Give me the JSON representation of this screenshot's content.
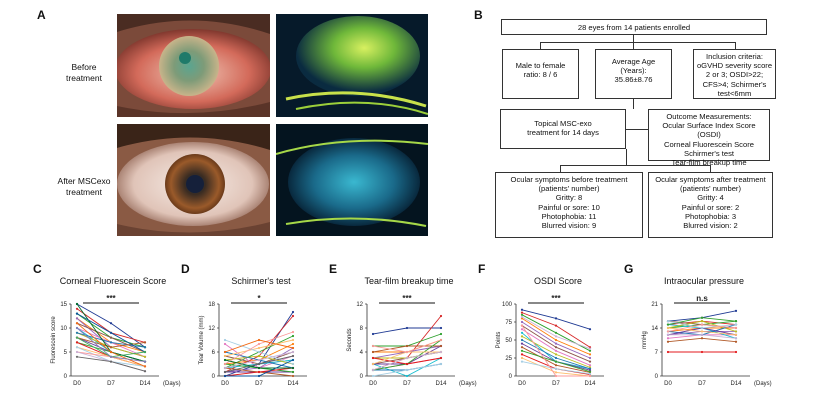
{
  "panelA": {
    "letter": "A",
    "row1_label": [
      "Before",
      "treatment"
    ],
    "row2_label": [
      "After MSCexo",
      "treatment"
    ]
  },
  "panelB": {
    "letter": "B",
    "enrolled": "28 eyes from 14 patients enrolled",
    "sex_ratio": [
      "Male to female",
      "ratio: 8 / 6"
    ],
    "age": [
      "Average Age",
      "(Years):",
      "35.86±8.76"
    ],
    "inclusion": [
      "Inclusion criteria:",
      "oGVHD  severity score",
      "2 or 3; OSDI>22;",
      "CFS>4; Schirmer's",
      "test<6mm"
    ],
    "treatment": [
      "Topical MSC-exo",
      "treatment for 14 days"
    ],
    "outcomes": [
      "Outcome Measurements:",
      "Ocular Surface Index Score (OSDI)",
      "Corneal Fluorescein Score",
      "Schirmer's test",
      "Tear-film breakup time"
    ],
    "before": {
      "title": [
        "Ocular symptoms before treatment",
        "(patients' number)"
      ],
      "items": [
        "Gritty: 8",
        "Painful or sore: 10",
        "Photophobia: 11",
        "Blurred vision: 9"
      ]
    },
    "after": {
      "title": [
        "Ocular symptoms after treatment",
        "(patients' number)"
      ],
      "items": [
        "Gritty: 4",
        "Painful or sore: 2",
        "Photophobia: 3",
        "Blurred vision: 2"
      ]
    }
  },
  "chart_data": [
    {
      "type": "line",
      "letter": "C",
      "title": "Corneal Fluorescein Score",
      "xlabel": "(Days)",
      "ylabel": "Fluorescein score",
      "categories": [
        "D0",
        "D7",
        "D14"
      ],
      "ylim": [
        0,
        15
      ],
      "yticks": [
        "0",
        "5",
        "10",
        "15"
      ],
      "yticks_values": [
        0,
        5,
        10,
        15
      ],
      "significance": "***",
      "series": [
        {
          "values": [
            15,
            11,
            6
          ]
        },
        {
          "values": [
            14,
            9,
            7
          ]
        },
        {
          "values": [
            13,
            8,
            6
          ]
        },
        {
          "values": [
            12,
            7,
            5
          ]
        },
        {
          "values": [
            12,
            6,
            4
          ]
        },
        {
          "values": [
            11,
            8,
            5
          ]
        },
        {
          "values": [
            10,
            7,
            4
          ]
        },
        {
          "values": [
            10,
            5,
            3
          ]
        },
        {
          "values": [
            9,
            6,
            4
          ]
        },
        {
          "values": [
            9,
            7,
            6
          ]
        },
        {
          "values": [
            8,
            5,
            3
          ]
        },
        {
          "values": [
            8,
            6,
            7
          ]
        },
        {
          "values": [
            7,
            5,
            3
          ]
        },
        {
          "values": [
            7,
            4,
            2
          ]
        },
        {
          "values": [
            6,
            4,
            2
          ]
        },
        {
          "values": [
            6,
            3,
            2
          ]
        },
        {
          "values": [
            5,
            4,
            3
          ]
        },
        {
          "values": [
            5,
            3,
            1
          ]
        },
        {
          "values": [
            4,
            3,
            1
          ]
        },
        {
          "values": [
            15,
            5,
            3
          ]
        },
        {
          "values": [
            13,
            9,
            5
          ]
        },
        {
          "values": [
            11,
            5,
            2
          ]
        },
        {
          "values": [
            8,
            4,
            5
          ]
        },
        {
          "values": [
            10,
            4,
            3
          ]
        }
      ]
    },
    {
      "type": "line",
      "letter": "D",
      "title": "Schirmer's test",
      "xlabel": "",
      "ylabel": "Tear Volume (mm)",
      "categories": [
        "D0",
        "D7",
        "D14"
      ],
      "ylim": [
        0,
        18
      ],
      "yticks": [
        "0",
        "6",
        "12",
        "18"
      ],
      "yticks_values": [
        0,
        6,
        12,
        18
      ],
      "significance": "*",
      "series": [
        {
          "values": [
            0,
            3,
            16
          ]
        },
        {
          "values": [
            1,
            5,
            15
          ]
        },
        {
          "values": [
            2,
            6,
            10
          ]
        },
        {
          "values": [
            3,
            4,
            8
          ]
        },
        {
          "values": [
            1,
            2,
            7
          ]
        },
        {
          "values": [
            5,
            3,
            6
          ]
        },
        {
          "values": [
            8,
            2,
            5
          ]
        },
        {
          "values": [
            2,
            3,
            4
          ]
        },
        {
          "values": [
            4,
            5,
            3
          ]
        },
        {
          "values": [
            6,
            4,
            2
          ]
        },
        {
          "values": [
            1,
            1,
            1
          ]
        },
        {
          "values": [
            2,
            1,
            0
          ]
        },
        {
          "values": [
            3,
            2,
            1
          ]
        },
        {
          "values": [
            0,
            1,
            2
          ]
        },
        {
          "values": [
            5,
            7,
            9
          ]
        },
        {
          "values": [
            9,
            6,
            3
          ]
        },
        {
          "values": [
            3,
            8,
            11
          ]
        },
        {
          "values": [
            2,
            4,
            6
          ]
        },
        {
          "values": [
            1,
            3,
            5
          ]
        },
        {
          "values": [
            4,
            2,
            2
          ]
        },
        {
          "values": [
            0,
            0,
            4
          ]
        },
        {
          "values": [
            6,
            9,
            7
          ]
        }
      ]
    },
    {
      "type": "line",
      "letter": "E",
      "title": "Tear-film breakup time",
      "xlabel": "(Days)",
      "ylabel": "Seconds",
      "categories": [
        "D0",
        "D7",
        "D14"
      ],
      "ylim": [
        0,
        12
      ],
      "yticks": [
        "0",
        "4",
        "8",
        "12"
      ],
      "yticks_values": [
        0,
        4,
        8,
        12
      ],
      "significance": "***",
      "series": [
        {
          "values": [
            7,
            8,
            8
          ]
        },
        {
          "values": [
            1,
            3,
            10
          ]
        },
        {
          "values": [
            5,
            5,
            7
          ]
        },
        {
          "values": [
            4,
            4,
            6
          ]
        },
        {
          "values": [
            3,
            4,
            5
          ]
        },
        {
          "values": [
            2,
            3,
            4
          ]
        },
        {
          "values": [
            1,
            2,
            3
          ]
        },
        {
          "values": [
            2,
            0,
            3
          ]
        },
        {
          "values": [
            3,
            3,
            4
          ]
        },
        {
          "values": [
            1,
            1,
            2
          ]
        },
        {
          "values": [
            2,
            2,
            5
          ]
        },
        {
          "values": [
            4,
            5,
            5
          ]
        },
        {
          "values": [
            1,
            2,
            6
          ]
        },
        {
          "values": [
            3,
            2,
            3
          ]
        },
        {
          "values": [
            2,
            4,
            4
          ]
        },
        {
          "values": [
            0,
            1,
            2
          ]
        },
        {
          "values": [
            5,
            4,
            6
          ]
        },
        {
          "values": [
            1,
            3,
            4
          ]
        }
      ]
    },
    {
      "type": "line",
      "letter": "F",
      "title": "OSDI Score",
      "xlabel": "",
      "ylabel": "Points",
      "categories": [
        "D0",
        "D7",
        "D14"
      ],
      "ylim": [
        0,
        100
      ],
      "yticks": [
        "0",
        "25",
        "50",
        "75",
        "100"
      ],
      "yticks_values": [
        0,
        25,
        50,
        75,
        100
      ],
      "significance": "***",
      "series": [
        {
          "values": [
            92,
            80,
            65
          ]
        },
        {
          "values": [
            88,
            70,
            40
          ]
        },
        {
          "values": [
            85,
            60,
            35
          ]
        },
        {
          "values": [
            80,
            50,
            30
          ]
        },
        {
          "values": [
            75,
            45,
            25
          ]
        },
        {
          "values": [
            70,
            40,
            20
          ]
        },
        {
          "values": [
            65,
            35,
            15
          ]
        },
        {
          "values": [
            60,
            20,
            10
          ]
        },
        {
          "values": [
            55,
            30,
            12
          ]
        },
        {
          "values": [
            50,
            25,
            10
          ]
        },
        {
          "values": [
            45,
            20,
            8
          ]
        },
        {
          "values": [
            40,
            15,
            5
          ]
        },
        {
          "values": [
            35,
            20,
            6
          ]
        },
        {
          "values": [
            30,
            10,
            2
          ]
        },
        {
          "values": [
            25,
            5,
            0
          ]
        },
        {
          "values": [
            20,
            10,
            3
          ]
        },
        {
          "values": [
            70,
            0,
            0
          ]
        },
        {
          "values": [
            82,
            55,
            38
          ]
        }
      ]
    },
    {
      "type": "line",
      "letter": "G",
      "title": "Intraocular pressure",
      "xlabel": "(Days)",
      "ylabel": "mmHg",
      "categories": [
        "D0",
        "D7",
        "D14"
      ],
      "ylim": [
        0,
        21
      ],
      "yticks": [
        "0",
        "7",
        "14",
        "21"
      ],
      "yticks_values": [
        0,
        7,
        14,
        21
      ],
      "significance": "n.s",
      "series": [
        {
          "values": [
            16,
            17,
            19
          ]
        },
        {
          "values": [
            15,
            16,
            15
          ]
        },
        {
          "values": [
            14,
            15,
            16
          ]
        },
        {
          "values": [
            13,
            14,
            14
          ]
        },
        {
          "values": [
            12,
            13,
            13
          ]
        },
        {
          "values": [
            16,
            15,
            14
          ]
        },
        {
          "values": [
            11,
            12,
            12
          ]
        },
        {
          "values": [
            15,
            14,
            11
          ]
        },
        {
          "values": [
            14,
            16,
            13
          ]
        },
        {
          "values": [
            13,
            12,
            15
          ]
        },
        {
          "values": [
            12,
            14,
            12
          ]
        },
        {
          "values": [
            10,
            11,
            10
          ]
        },
        {
          "values": [
            15,
            17,
            16
          ]
        },
        {
          "values": [
            7,
            7,
            7
          ]
        },
        {
          "values": [
            14,
            13,
            12
          ]
        },
        {
          "values": [
            16,
            14,
            15
          ]
        },
        {
          "values": [
            13,
            15,
            14
          ]
        },
        {
          "values": [
            12,
            12,
            11
          ]
        }
      ]
    }
  ],
  "colors": {
    "palette": [
      "#1f3a93",
      "#d62728",
      "#2ca02c",
      "#ff7f0e",
      "#9467bd",
      "#8c564b",
      "#e377c2",
      "#17becf",
      "#bcbd22",
      "#1f77b4",
      "#6a3d9a",
      "#b15928",
      "#33a02c",
      "#e31a1c",
      "#fdbf6f",
      "#a6cee3",
      "#fb9a99",
      "#cab2d6",
      "#666666",
      "#006d2c",
      "#08519c",
      "#f16913",
      "#41ab5d",
      "#807dba"
    ]
  }
}
